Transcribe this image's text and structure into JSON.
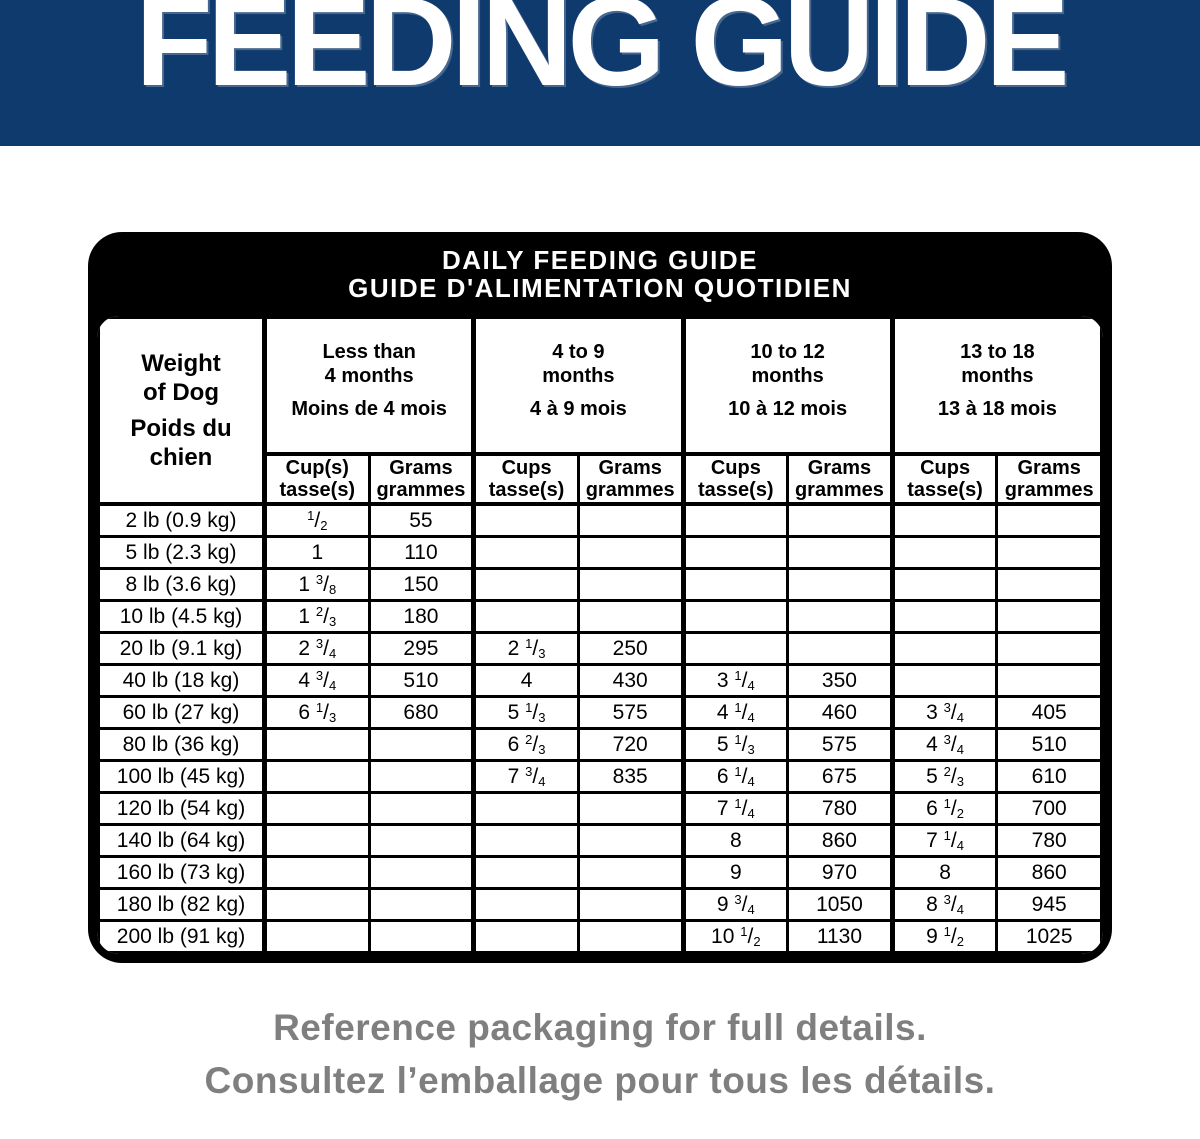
{
  "banner": {
    "title": "FEEDING GUIDE",
    "bg_color": "#0f3a6e",
    "text_color": "#ffffff"
  },
  "card": {
    "title_line1": "DAILY FEEDING GUIDE",
    "title_line2": "GUIDE D'ALIMENTATION QUOTIDIEN",
    "bg_color": "#000000"
  },
  "table": {
    "weight_header": {
      "en_line1": "Weight",
      "en_line2": "of Dog",
      "fr": "Poids du chien"
    },
    "age_groups": [
      {
        "en_line1": "Less than",
        "en_line2": "4 months",
        "fr": "Moins de 4 mois",
        "cups_label": [
          "Cup(s)",
          "tasse(s)"
        ],
        "grams_label": [
          "Grams",
          "grammes"
        ]
      },
      {
        "en_line1": "4 to 9",
        "en_line2": "months",
        "fr": "4 à 9 mois",
        "cups_label": [
          "Cups",
          "tasse(s)"
        ],
        "grams_label": [
          "Grams",
          "grammes"
        ]
      },
      {
        "en_line1": "10 to 12",
        "en_line2": "months",
        "fr": "10 à 12 mois",
        "cups_label": [
          "Cups",
          "tasse(s)"
        ],
        "grams_label": [
          "Grams",
          "grammes"
        ]
      },
      {
        "en_line1": "13 to 18",
        "en_line2": "months",
        "fr": "13 à 18 mois",
        "cups_label": [
          "Cups",
          "tasse(s)"
        ],
        "grams_label": [
          "Grams",
          "grammes"
        ]
      }
    ],
    "rows": [
      {
        "weight": "2 lb (0.9 kg)",
        "values": [
          "1/2",
          "55",
          "",
          "",
          "",
          "",
          "",
          ""
        ]
      },
      {
        "weight": "5 lb (2.3 kg)",
        "values": [
          "1",
          "110",
          "",
          "",
          "",
          "",
          "",
          ""
        ]
      },
      {
        "weight": "8 lb (3.6 kg)",
        "values": [
          "1 3/8",
          "150",
          "",
          "",
          "",
          "",
          "",
          ""
        ]
      },
      {
        "weight": "10 lb (4.5 kg)",
        "values": [
          "1 2/3",
          "180",
          "",
          "",
          "",
          "",
          "",
          ""
        ]
      },
      {
        "weight": "20 lb (9.1 kg)",
        "values": [
          "2 3/4",
          "295",
          "2 1/3",
          "250",
          "",
          "",
          "",
          ""
        ]
      },
      {
        "weight": "40 lb (18 kg)",
        "values": [
          "4 3/4",
          "510",
          "4",
          "430",
          "3 1/4",
          "350",
          "",
          ""
        ]
      },
      {
        "weight": "60 lb (27 kg)",
        "values": [
          "6 1/3",
          "680",
          "5 1/3",
          "575",
          "4 1/4",
          "460",
          "3 3/4",
          "405"
        ]
      },
      {
        "weight": "80 lb (36 kg)",
        "values": [
          "",
          "",
          "6 2/3",
          "720",
          "5 1/3",
          "575",
          "4 3/4",
          "510"
        ]
      },
      {
        "weight": "100 lb (45 kg)",
        "values": [
          "",
          "",
          "7 3/4",
          "835",
          "6 1/4",
          "675",
          "5 2/3",
          "610"
        ]
      },
      {
        "weight": "120 lb (54 kg)",
        "values": [
          "",
          "",
          "",
          "",
          "7 1/4",
          "780",
          "6 1/2",
          "700"
        ]
      },
      {
        "weight": "140 lb (64 kg)",
        "values": [
          "",
          "",
          "",
          "",
          "8",
          "860",
          "7 1/4",
          "780"
        ]
      },
      {
        "weight": "160 lb (73 kg)",
        "values": [
          "",
          "",
          "",
          "",
          "9",
          "970",
          "8",
          "860"
        ]
      },
      {
        "weight": "180 lb (82 kg)",
        "values": [
          "",
          "",
          "",
          "",
          "9 3/4",
          "1050",
          "8 3/4",
          "945"
        ]
      },
      {
        "weight": "200 lb (91 kg)",
        "values": [
          "",
          "",
          "",
          "",
          "10 1/2",
          "1130",
          "9 1/2",
          "1025"
        ]
      }
    ]
  },
  "footer": {
    "line1": "Reference packaging for full details.",
    "line2": "Consultez l’emballage pour tous les détails.",
    "text_color": "#7f7f7f"
  }
}
